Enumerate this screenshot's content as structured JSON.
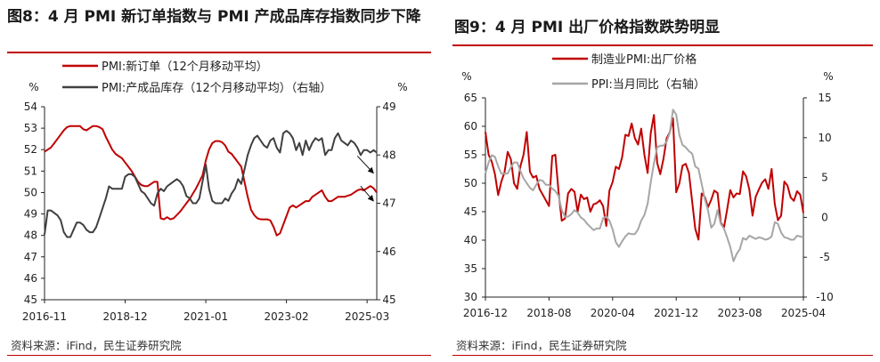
{
  "chart_data": [
    {
      "type": "line",
      "title": "图8：4 月 PMI 新订单指数与 PMI 产成品库存指数同步下降",
      "source": "资料来源：iFind，民生证券研究院",
      "left_unit": "%",
      "right_unit": "%",
      "ylim_left": [
        45,
        54
      ],
      "ylim_right": [
        45,
        49
      ],
      "left_ticks": [
        "45",
        "46",
        "47",
        "48",
        "49",
        "50",
        "51",
        "52",
        "53",
        "54"
      ],
      "right_ticks": [
        "45",
        "46",
        "47",
        "48",
        "49"
      ],
      "x_tick_labels": [
        "2016-11",
        "2018-12",
        "2021-01",
        "2023-02",
        "2025-03"
      ],
      "x_tick_index": [
        0,
        25,
        50,
        75,
        100
      ],
      "annotations": [
        {
          "from_index": 97,
          "from_value": 51.7,
          "to_index": 102,
          "to_value": 50.9
        },
        {
          "from_index": 98,
          "from_value": 50.3,
          "to_index": 102,
          "to_value": 49.6
        }
      ],
      "series": [
        {
          "name": "PMI:新订单（12个月移动平均）",
          "axis": "left",
          "color": "#c00000",
          "values": [
            51.9,
            52.0,
            52.1,
            52.3,
            52.5,
            52.7,
            52.9,
            53.05,
            53.1,
            53.1,
            53.1,
            53.1,
            52.95,
            52.9,
            53.0,
            53.1,
            53.1,
            53.05,
            52.95,
            52.6,
            52.3,
            52.0,
            51.8,
            51.7,
            51.6,
            51.4,
            51.2,
            51.0,
            50.75,
            50.5,
            50.35,
            50.3,
            50.3,
            50.4,
            50.5,
            50.5,
            48.8,
            48.75,
            48.85,
            48.75,
            48.8,
            48.95,
            49.1,
            49.3,
            49.5,
            49.7,
            49.95,
            50.2,
            50.5,
            50.8,
            51.5,
            52.0,
            52.3,
            52.4,
            52.4,
            52.35,
            52.2,
            51.9,
            51.8,
            51.6,
            51.4,
            51.2,
            50.5,
            49.8,
            49.2,
            48.95,
            48.8,
            48.75,
            48.75,
            48.75,
            48.7,
            48.4,
            48.0,
            48.1,
            48.5,
            48.9,
            49.3,
            49.4,
            49.3,
            49.4,
            49.5,
            49.6,
            49.6,
            49.8,
            49.9,
            50.0,
            50.1,
            49.8,
            49.6,
            49.6,
            49.7,
            49.8,
            49.8,
            49.8,
            49.85,
            49.9,
            50.0,
            50.1,
            50.15,
            50.1,
            50.2,
            50.3,
            50.2,
            50.0
          ]
        },
        {
          "name": "PMI:产成品库存（12个月移动平均）（右轴）",
          "axis": "right",
          "color": "#404040",
          "values": [
            46.35,
            46.85,
            46.85,
            46.8,
            46.75,
            46.65,
            46.4,
            46.3,
            46.3,
            46.45,
            46.6,
            46.6,
            46.55,
            46.45,
            46.4,
            46.4,
            46.5,
            46.7,
            46.9,
            47.1,
            47.35,
            47.3,
            47.3,
            47.3,
            47.3,
            47.55,
            47.6,
            47.6,
            47.55,
            47.4,
            47.25,
            47.2,
            47.1,
            47.0,
            46.95,
            47.2,
            47.3,
            47.25,
            47.35,
            47.4,
            47.45,
            47.5,
            47.45,
            47.35,
            47.15,
            47.1,
            47.0,
            47.0,
            47.1,
            47.45,
            47.8,
            47.3,
            47.05,
            47.0,
            47.0,
            47.0,
            47.1,
            47.05,
            47.2,
            47.3,
            47.5,
            47.4,
            47.7,
            48.0,
            48.2,
            48.35,
            48.4,
            48.3,
            48.2,
            48.15,
            48.3,
            48.35,
            48.15,
            48.05,
            48.45,
            48.5,
            48.45,
            48.35,
            48.1,
            48.25,
            48.0,
            48.3,
            48.1,
            48.25,
            48.35,
            48.3,
            48.35,
            48.0,
            48.1,
            48.1,
            48.35,
            48.45,
            48.3,
            48.25,
            48.2,
            48.3,
            48.25,
            48.15,
            48.0,
            48.1,
            48.1,
            48.05,
            48.1,
            48.05
          ]
        }
      ]
    },
    {
      "type": "line",
      "title": "图9：4 月 PMI 出厂价格指数跌势明显",
      "source": "资料来源：iFind，民生证券研究院",
      "left_unit": "%",
      "right_unit": "%",
      "ylim_left": [
        30,
        65
      ],
      "ylim_right": [
        -10,
        15
      ],
      "left_ticks": [
        "30",
        "35",
        "40",
        "45",
        "50",
        "55",
        "60",
        "65"
      ],
      "right_ticks": [
        "-10",
        "-5",
        "0",
        "5",
        "10",
        "15"
      ],
      "x_tick_labels": [
        "2016-12",
        "2018-08",
        "2020-04",
        "2021-12",
        "2023-08",
        "2025-04"
      ],
      "x_tick_index": [
        0,
        20,
        40,
        60,
        80,
        100
      ],
      "series": [
        {
          "name": "制造业PMI:出厂价格",
          "axis": "left",
          "color": "#c00000",
          "values": [
            59.0,
            55.0,
            53.8,
            51.6,
            47.9,
            50.3,
            51.9,
            55.5,
            54.2,
            50.0,
            49.0,
            53.0,
            55.0,
            59.0,
            52.0,
            51.0,
            51.3,
            49.0,
            48.0,
            47.0,
            46.0,
            54.8,
            55.0,
            48.5,
            43.4,
            43.8,
            48.2,
            49.0,
            48.5,
            45.0,
            48.0,
            47.2,
            47.5,
            45.0,
            46.3,
            46.5,
            47.0,
            46.0,
            42.5,
            48.7,
            50.2,
            52.9,
            52.5,
            54.6,
            58.5,
            58.3,
            60.5,
            57.9,
            56.8,
            59.6,
            55.0,
            51.8,
            58.8,
            62.0,
            53.6,
            51.6,
            54.3,
            57.9,
            59.0,
            61.4,
            48.4,
            50.0,
            53.1,
            53.4,
            51.8,
            46.8,
            42.0,
            40.1,
            48.2,
            47.6,
            45.8,
            47.1,
            48.7,
            48.3,
            43.1,
            42.2,
            45.3,
            48.8,
            47.5,
            48.2,
            48.1,
            52.1,
            51.2,
            48.9,
            44.3,
            47.6,
            48.9,
            50.1,
            50.7,
            49.0,
            52.5,
            46.3,
            43.5,
            44.3,
            50.3,
            49.6,
            47.5,
            46.9,
            48.6,
            48.0,
            44.8
          ]
        },
        {
          "name": "PPI:当月同比（右轴）",
          "axis": "right",
          "color": "#a6a6a6",
          "values": [
            5.5,
            6.9,
            7.8,
            7.6,
            6.4,
            5.5,
            5.5,
            5.5,
            6.3,
            6.9,
            6.9,
            5.8,
            4.9,
            4.3,
            3.7,
            3.4,
            4.1,
            4.7,
            4.6,
            4.1,
            4.1,
            3.6,
            3.3,
            2.7,
            0.9,
            0.1,
            0.1,
            0.4,
            0.9,
            0.6,
            0.0,
            -0.3,
            -0.8,
            -1.2,
            -1.6,
            -1.4,
            -1.4,
            -0.1,
            0.1,
            -0.4,
            -1.5,
            -3.1,
            -3.7,
            -3.0,
            -2.4,
            -2.0,
            -2.1,
            -2.1,
            -1.5,
            -0.4,
            0.3,
            1.7,
            4.4,
            6.8,
            8.8,
            9.0,
            9.0,
            9.5,
            10.7,
            13.5,
            12.9,
            10.3,
            9.1,
            8.8,
            8.3,
            8.0,
            6.4,
            6.1,
            4.2,
            2.3,
            0.9,
            -1.3,
            -0.8,
            0.9,
            -0.8,
            -1.4,
            -2.5,
            -3.7,
            -5.5,
            -4.6,
            -4.0,
            -2.6,
            -2.8,
            -2.3,
            -2.5,
            -2.7,
            -2.5,
            -2.6,
            -2.8,
            -2.7,
            -2.4,
            -0.6,
            -0.8,
            -1.9,
            -2.5,
            -2.6,
            -2.8,
            -2.8,
            -2.3,
            -2.4,
            -2.5
          ]
        }
      ]
    }
  ]
}
